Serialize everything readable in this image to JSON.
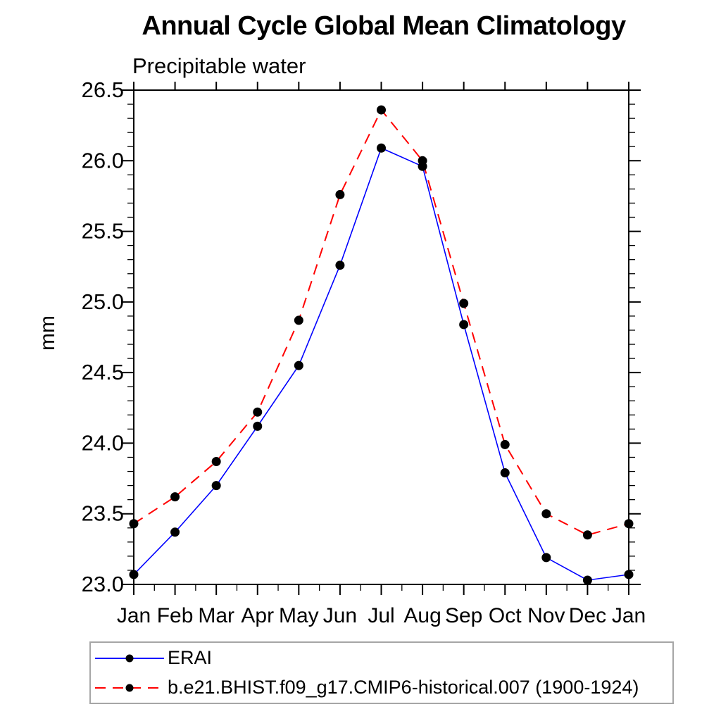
{
  "title": "Annual Cycle Global Mean Climatology",
  "chart_data": {
    "type": "line",
    "title": "Annual Cycle Global Mean Climatology",
    "subtitle": "Precipitable water",
    "ylabel": "mm",
    "xlabel": "",
    "categories": [
      "Jan",
      "Feb",
      "Mar",
      "Apr",
      "May",
      "Jun",
      "Jul",
      "Aug",
      "Sep",
      "Oct",
      "Nov",
      "Dec",
      "Jan"
    ],
    "series": [
      {
        "name": "ERAI",
        "color": "#0000ff",
        "line_style": "solid",
        "marker": "filled-circle",
        "marker_color": "#000000",
        "values": [
          23.07,
          23.37,
          23.7,
          24.12,
          24.55,
          25.26,
          26.09,
          25.96,
          24.84,
          23.79,
          23.19,
          23.03,
          23.07
        ]
      },
      {
        "name": "b.e21.BHIST.f09_g17.CMIP6-historical.007 (1900-1924)",
        "color": "#ff0000",
        "line_style": "dashed",
        "marker": "filled-circle",
        "marker_color": "#000000",
        "values": [
          23.43,
          23.62,
          23.87,
          24.22,
          24.87,
          25.76,
          26.36,
          26.0,
          24.99,
          23.99,
          23.5,
          23.35,
          23.43
        ]
      }
    ],
    "ylim": [
      23.0,
      26.5
    ],
    "ytick_major_step": 0.5,
    "ytick_minor_step": 0.1,
    "ytick_labels": [
      "26.5",
      "26.0",
      "25.5",
      "25.0",
      "24.5",
      "24.0",
      "23.5",
      "23.0"
    ],
    "xtick_minor": "half-month",
    "grid": false,
    "frame": "box with outward ticks on all four sides",
    "legend_position": "bottom-left box"
  }
}
